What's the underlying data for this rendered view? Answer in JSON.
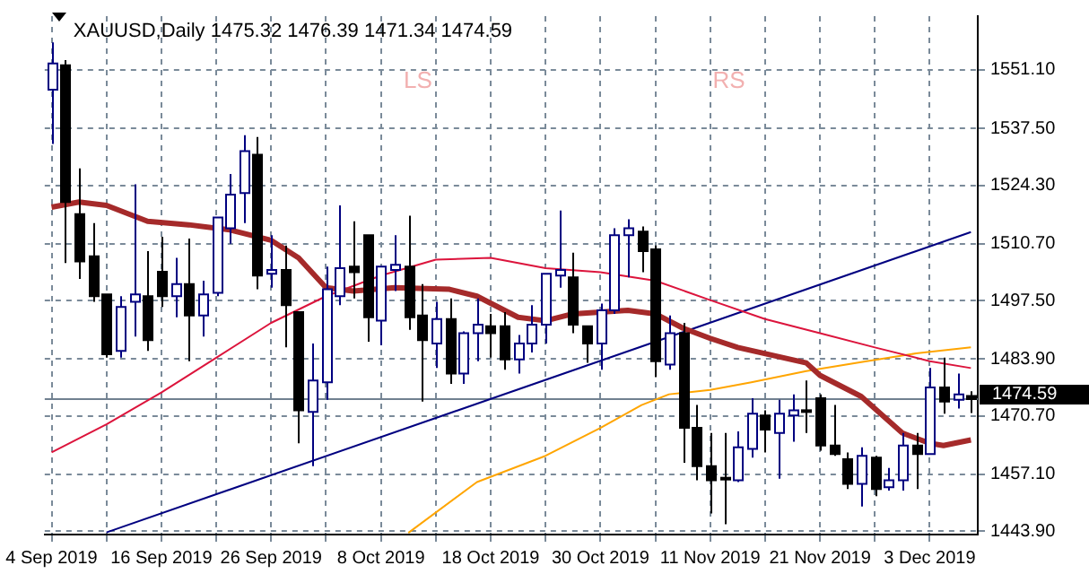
{
  "chart_data": {
    "type": "candlestick",
    "title": "XAUUSD,Daily 1475.32 1476.39 1471.34 1474.59",
    "categories": [
      "4 Sep 2019",
      null,
      null,
      null,
      null,
      null,
      null,
      null,
      "16 Sep 2019",
      null,
      null,
      null,
      null,
      null,
      null,
      null,
      "26 Sep 2019",
      null,
      null,
      null,
      null,
      null,
      null,
      null,
      "8 Oct 2019",
      null,
      null,
      null,
      null,
      null,
      null,
      null,
      "18 Oct 2019",
      null,
      null,
      null,
      null,
      null,
      null,
      null,
      "30 Oct 2019",
      null,
      null,
      null,
      null,
      null,
      null,
      null,
      "11 Nov 2019",
      null,
      null,
      null,
      null,
      null,
      null,
      null,
      "21 Nov 2019",
      null,
      null,
      null,
      null,
      null,
      null,
      null,
      "3 Dec 2019",
      null,
      null,
      null
    ],
    "ohlc": [
      [
        1546.5,
        1557.5,
        1533.9,
        1552.6
      ],
      [
        1552.2,
        1553.4,
        1506.2,
        1520.4
      ],
      [
        1517.6,
        1528.2,
        1502.5,
        1506.6
      ],
      [
        1507.8,
        1515.5,
        1497.2,
        1498.5
      ],
      [
        1498.9,
        1498.9,
        1484.2,
        1485.0
      ],
      [
        1485.8,
        1498.5,
        1484.2,
        1496.0
      ],
      [
        1497.2,
        1524.5,
        1489.1,
        1498.9
      ],
      [
        1498.5,
        1509.0,
        1485.8,
        1488.3
      ],
      [
        1504.2,
        1512.3,
        1496.0,
        1498.5
      ],
      [
        1498.5,
        1507.4,
        1493.6,
        1501.3
      ],
      [
        1501.3,
        1511.9,
        1483.4,
        1494.0
      ],
      [
        1494.0,
        1502.1,
        1489.1,
        1498.9
      ],
      [
        1499.3,
        1516.8,
        1498.5,
        1516.8
      ],
      [
        1514.3,
        1526.9,
        1510.7,
        1522.1
      ],
      [
        1522.5,
        1535.9,
        1515.5,
        1532.2
      ],
      [
        1531.4,
        1535.5,
        1500.1,
        1503.3
      ],
      [
        1503.7,
        1512.7,
        1500.5,
        1504.6
      ],
      [
        1504.6,
        1510.3,
        1486.6,
        1496.4
      ],
      [
        1494.8,
        1494.8,
        1464.3,
        1472.0
      ],
      [
        1471.6,
        1487.5,
        1459.0,
        1478.9
      ],
      [
        1478.5,
        1505.4,
        1474.4,
        1500.1
      ],
      [
        1498.5,
        1519.6,
        1496.4,
        1505.0
      ],
      [
        1505.4,
        1515.9,
        1498.0,
        1504.1
      ],
      [
        1512.7,
        1512.7,
        1487.9,
        1493.6
      ],
      [
        1492.8,
        1505.4,
        1487.1,
        1505.4
      ],
      [
        1504.6,
        1512.7,
        1499.7,
        1505.8
      ],
      [
        1505.4,
        1517.2,
        1490.7,
        1493.6
      ],
      [
        1494.0,
        1501.3,
        1474.0,
        1488.3
      ],
      [
        1487.5,
        1497.2,
        1481.8,
        1493.2
      ],
      [
        1493.2,
        1498.0,
        1478.1,
        1480.5
      ],
      [
        1480.5,
        1490.3,
        1478.1,
        1489.9
      ],
      [
        1489.9,
        1498.0,
        1483.4,
        1491.9
      ],
      [
        1491.5,
        1494.4,
        1484.2,
        1489.9
      ],
      [
        1491.5,
        1494.8,
        1481.4,
        1483.8
      ],
      [
        1483.8,
        1489.5,
        1480.5,
        1487.5
      ],
      [
        1487.5,
        1496.4,
        1485.4,
        1491.9
      ],
      [
        1491.9,
        1503.7,
        1487.5,
        1503.7
      ],
      [
        1503.3,
        1518.4,
        1500.5,
        1504.6
      ],
      [
        1502.9,
        1508.6,
        1489.9,
        1491.9
      ],
      [
        1491.5,
        1491.5,
        1483.0,
        1487.5
      ],
      [
        1487.5,
        1496.8,
        1481.4,
        1495.2
      ],
      [
        1495.2,
        1514.3,
        1494.4,
        1512.7
      ],
      [
        1512.7,
        1516.4,
        1502.9,
        1514.3
      ],
      [
        1513.5,
        1514.7,
        1504.1,
        1509.0
      ],
      [
        1509.4,
        1510.3,
        1479.7,
        1483.4
      ],
      [
        1482.6,
        1494.0,
        1481.4,
        1489.9
      ],
      [
        1489.9,
        1492.3,
        1459.8,
        1467.9
      ],
      [
        1467.9,
        1473.2,
        1455.7,
        1459.0
      ],
      [
        1459.0,
        1466.7,
        1448.0,
        1455.7
      ],
      [
        1456.3,
        1466.7,
        1445.5,
        1455.9
      ],
      [
        1455.7,
        1467.1,
        1455.3,
        1463.4
      ],
      [
        1463.0,
        1474.8,
        1461.0,
        1471.2
      ],
      [
        1470.8,
        1472.0,
        1462.2,
        1467.5
      ],
      [
        1466.7,
        1474.4,
        1456.1,
        1471.2
      ],
      [
        1470.8,
        1475.7,
        1464.7,
        1472.0
      ],
      [
        1472.0,
        1478.9,
        1466.7,
        1471.6
      ],
      [
        1474.8,
        1475.7,
        1462.6,
        1463.8
      ],
      [
        1463.8,
        1473.2,
        1461.4,
        1461.8
      ],
      [
        1460.6,
        1462.2,
        1453.7,
        1454.9
      ],
      [
        1454.9,
        1463.4,
        1449.6,
        1461.4
      ],
      [
        1461.0,
        1461.4,
        1452.0,
        1453.7
      ],
      [
        1454.1,
        1458.6,
        1453.3,
        1455.7
      ],
      [
        1455.7,
        1466.7,
        1453.3,
        1463.8
      ],
      [
        1463.8,
        1466.7,
        1453.7,
        1461.8
      ],
      [
        1461.8,
        1481.8,
        1461.8,
        1477.3
      ],
      [
        1477.3,
        1484.2,
        1471.2,
        1474.0
      ],
      [
        1474.4,
        1480.5,
        1472.4,
        1475.7
      ],
      [
        1475.32,
        1476.39,
        1471.34,
        1474.59
      ]
    ],
    "colors": [
      "#ffffff",
      "#000000",
      "#000000",
      "#000000",
      "#000000",
      "#ffffff",
      "#ffffff",
      "#000000",
      "#000000",
      "#ffffff",
      "#000000",
      "#ffffff",
      "#ffffff",
      "#ffffff",
      "#ffffff",
      "#000000",
      "#ffffff",
      "#000000",
      "#000000",
      "#ffffff",
      "#ffffff",
      "#ffffff",
      "#000000",
      "#000000",
      "#ffffff",
      "#ffffff",
      "#000000",
      "#000000",
      "#ffffff",
      "#000000",
      "#ffffff",
      "#ffffff",
      "#000000",
      "#000000",
      "#ffffff",
      "#ffffff",
      "#ffffff",
      "#ffffff",
      "#000000",
      "#000000",
      "#ffffff",
      "#ffffff",
      "#ffffff",
      "#000000",
      "#000000",
      "#ffffff",
      "#000000",
      "#000000",
      "#000000",
      "#000000",
      "#ffffff",
      "#ffffff",
      "#000000",
      "#ffffff",
      "#ffffff",
      "#000000",
      "#000000",
      "#000000",
      "#000000",
      "#ffffff",
      "#000000",
      "#ffffff",
      "#ffffff",
      "#000000",
      "#ffffff",
      "#000000",
      "#ffffff",
      "#000000"
    ],
    "series": [
      {
        "type": "line",
        "color": "#a52a2a",
        "values": [
          1519.2,
          null,
          1520.4,
          null,
          1519.6,
          null,
          null,
          1515.9,
          null,
          null,
          1515.1,
          null,
          null,
          1513.9,
          null,
          null,
          1511.5,
          null,
          1507.4,
          null,
          1500.5,
          null,
          1499.7,
          null,
          null,
          1500.5,
          null,
          null,
          null,
          1500.1,
          null,
          1498.5,
          null,
          null,
          1493.6,
          null,
          1492.8,
          null,
          1494.4,
          null,
          null,
          null,
          1495.2,
          null,
          1494.4,
          null,
          1491.1,
          null,
          1488.7,
          null,
          1486.6,
          null,
          null,
          null,
          null,
          1483.0,
          1480.1,
          null,
          null,
          1475.2,
          null,
          null,
          1466.7,
          null,
          1464.3,
          1463.8,
          null,
          1465.1
        ]
      },
      {
        "type": "line",
        "color": "#dc143c",
        "values": [
          1462.2,
          null,
          null,
          null,
          1468.7,
          null,
          null,
          null,
          1476.1,
          null,
          null,
          null,
          1484.2,
          null,
          null,
          null,
          1492.3,
          null,
          null,
          null,
          1498.5,
          null,
          null,
          null,
          1503.3,
          null,
          null,
          null,
          1507.0,
          null,
          null,
          null,
          1507.4,
          null,
          null,
          null,
          1505.0,
          null,
          null,
          null,
          1504.1,
          null,
          null,
          null,
          1502.1,
          null,
          null,
          null,
          1497.6,
          null,
          null,
          null,
          1493.2,
          null,
          null,
          null,
          1489.9,
          null,
          null,
          null,
          1486.6,
          null,
          null,
          null,
          1483.4,
          null,
          null,
          1481.8
        ]
      },
      {
        "type": "line",
        "color": "#ffa500",
        "values": [
          null,
          null,
          null,
          null,
          null,
          null,
          null,
          null,
          null,
          null,
          null,
          null,
          null,
          null,
          null,
          null,
          null,
          null,
          null,
          null,
          null,
          null,
          null,
          null,
          null,
          null,
          1443.5,
          null,
          null,
          null,
          null,
          1455.3,
          null,
          null,
          null,
          null,
          1461.4,
          null,
          null,
          null,
          1467.9,
          null,
          null,
          1473.2,
          null,
          1475.7,
          null,
          null,
          1476.7,
          null,
          null,
          1478.5,
          null,
          null,
          null,
          1481.1,
          null,
          null,
          null,
          1483.2,
          null,
          null,
          null,
          1485.2,
          null,
          null,
          null,
          1486.6
        ]
      },
      {
        "type": "line",
        "color": "#000080",
        "values": [
          null,
          null,
          null,
          null,
          1443.6,
          null,
          null,
          null,
          null,
          null,
          null,
          null,
          null,
          null,
          null,
          null,
          null,
          null,
          null,
          null,
          null,
          null,
          null,
          null,
          null,
          null,
          null,
          null,
          null,
          null,
          null,
          null,
          null,
          null,
          null,
          null,
          null,
          null,
          null,
          null,
          null,
          null,
          null,
          null,
          null,
          null,
          null,
          null,
          null,
          null,
          null,
          null,
          null,
          null,
          null,
          null,
          null,
          null,
          null,
          null,
          null,
          null,
          null,
          null,
          null,
          null,
          null,
          1513.4
        ]
      }
    ],
    "ylim": [
      1443.1,
      1563.6
    ],
    "yticks": [
      {
        "value": 1443.9,
        "label": "1443.90"
      },
      {
        "value": 1457.1,
        "label": "1457.10"
      },
      {
        "value": 1470.7,
        "label": "1470.70"
      },
      {
        "value": 1483.9,
        "label": "1483.90"
      },
      {
        "value": 1497.5,
        "label": "1497.50"
      },
      {
        "value": 1510.7,
        "label": "1510.70"
      },
      {
        "value": 1524.3,
        "label": "1524.30"
      },
      {
        "value": 1537.5,
        "label": "1537.50"
      },
      {
        "value": 1551.1,
        "label": "1551.10"
      }
    ],
    "ref_lines": [
      {
        "axis": "y",
        "value": 1474.59,
        "label": "1474.59",
        "color": "#708090"
      }
    ],
    "annotations": [
      "LS",
      "RS"
    ],
    "grid": true,
    "legend": false
  }
}
